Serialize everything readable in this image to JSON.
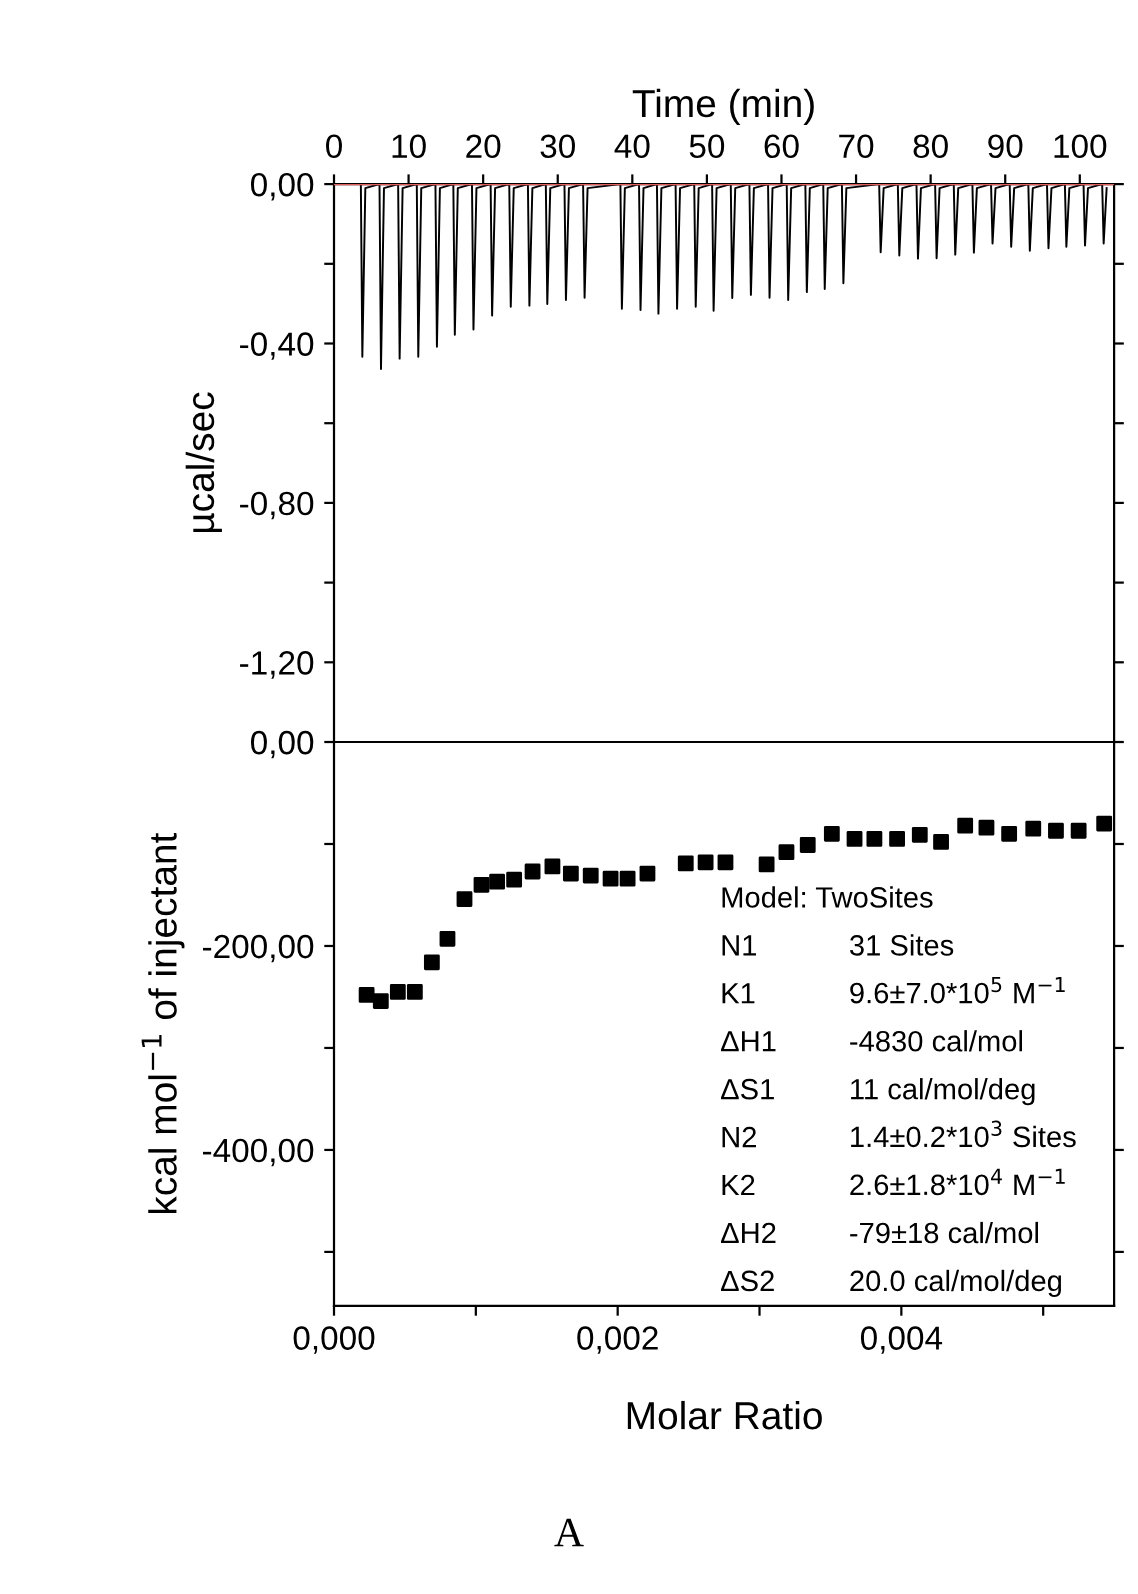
{
  "chart_data": [
    {
      "type": "line",
      "xlabel": "Time (min)",
      "ylabel": "µcal/sec",
      "xlim": [
        0,
        104.6
      ],
      "ylim": [
        -1.4,
        0
      ],
      "xticks": [
        0,
        10,
        20,
        30,
        40,
        50,
        60,
        70,
        80,
        90,
        100
      ],
      "yticks": [
        {
          "value": 0,
          "label": "0,00"
        },
        {
          "value": -0.2,
          "label": null
        },
        {
          "value": -0.4,
          "label": "-0,40"
        },
        {
          "value": -0.6,
          "label": null
        },
        {
          "value": -0.8,
          "label": "-0,80"
        },
        {
          "value": -1.0,
          "label": null
        },
        {
          "value": -1.2,
          "label": "-1,20"
        }
      ],
      "grid": false,
      "legend": false,
      "marker": "none",
      "line_style": "solid",
      "ref_lines": [
        {
          "axis": "y",
          "value": 0,
          "color": "#e06060"
        }
      ],
      "series": [
        {
          "color": "#000000",
          "x": [
            0.5,
            3.6,
            3.8,
            4.2,
            6.1,
            6.3,
            6.7,
            8.6,
            8.8,
            9.2,
            11.1,
            11.3,
            11.7,
            13.6,
            13.8,
            14.2,
            16.0,
            16.2,
            16.6,
            18.5,
            18.7,
            19.1,
            21.0,
            21.2,
            21.6,
            23.5,
            23.7,
            24.1,
            26.0,
            26.2,
            26.6,
            28.4,
            28.6,
            29.0,
            30.9,
            31.1,
            31.5,
            33.4,
            33.6,
            34.0,
            38.4,
            38.6,
            39.0,
            40.9,
            41.1,
            41.5,
            43.3,
            43.5,
            43.9,
            45.8,
            46.0,
            46.4,
            48.3,
            48.5,
            48.9,
            50.7,
            50.9,
            51.3,
            53.2,
            53.4,
            53.8,
            55.7,
            55.9,
            56.3,
            58.2,
            58.4,
            58.8,
            60.7,
            60.9,
            61.3,
            63.2,
            63.4,
            63.8,
            65.6,
            65.8,
            66.2,
            68.1,
            68.3,
            68.7,
            73.1,
            73.3,
            73.7,
            75.6,
            75.8,
            76.2,
            78.1,
            78.3,
            78.7,
            80.6,
            80.8,
            81.2,
            83.1,
            83.3,
            83.7,
            85.6,
            85.8,
            86.2,
            88.1,
            88.3,
            88.7,
            90.6,
            90.8,
            91.2,
            93.1,
            93.3,
            93.7,
            95.6,
            95.8,
            96.2,
            98.0,
            98.2,
            98.6,
            100.5,
            100.7,
            101.1,
            103.0,
            103.2,
            103.6
          ],
          "values": [
            0,
            0,
            -0.433,
            -0.01,
            0,
            -0.464,
            -0.01,
            0,
            -0.438,
            -0.01,
            0,
            -0.433,
            -0.01,
            0,
            -0.408,
            -0.01,
            0,
            -0.378,
            -0.01,
            0,
            -0.365,
            -0.01,
            0,
            -0.33,
            -0.01,
            0,
            -0.308,
            -0.01,
            0,
            -0.305,
            -0.01,
            0,
            -0.301,
            -0.01,
            0,
            -0.291,
            -0.01,
            0,
            -0.285,
            -0.01,
            0,
            -0.313,
            -0.01,
            0,
            -0.316,
            -0.01,
            0,
            -0.325,
            -0.01,
            0,
            -0.313,
            -0.01,
            0,
            -0.308,
            -0.01,
            0,
            -0.318,
            -0.01,
            0,
            -0.286,
            -0.01,
            0,
            -0.278,
            -0.01,
            0,
            -0.285,
            -0.01,
            0,
            -0.291,
            -0.01,
            0,
            -0.271,
            -0.01,
            0,
            -0.263,
            -0.01,
            0,
            -0.249,
            -0.01,
            0,
            -0.171,
            -0.01,
            0,
            -0.179,
            -0.01,
            0,
            -0.187,
            -0.01,
            0,
            -0.186,
            -0.01,
            0,
            -0.177,
            -0.01,
            0,
            -0.172,
            -0.01,
            0,
            -0.149,
            -0.01,
            0,
            -0.157,
            -0.01,
            0,
            -0.167,
            -0.01,
            0,
            -0.161,
            -0.01,
            0,
            -0.157,
            -0.01,
            0,
            -0.154,
            -0.01,
            0,
            -0.149,
            -0.01
          ]
        }
      ]
    },
    {
      "type": "scatter",
      "xlabel": "Molar Ratio",
      "ylabel": "kcal mol$^{−1}$ of injectant",
      "xlim": [
        0,
        0.0055
      ],
      "ylim": [
        -553,
        0
      ],
      "xticks": [
        {
          "value": 0,
          "label": "0,000"
        },
        {
          "value": 0.001,
          "label": null
        },
        {
          "value": 0.002,
          "label": "0,002"
        },
        {
          "value": 0.003,
          "label": null
        },
        {
          "value": 0.004,
          "label": "0,004"
        },
        {
          "value": 0.005,
          "label": null
        }
      ],
      "yticks": [
        {
          "value": 0,
          "label": "0,00"
        },
        {
          "value": -100,
          "label": null
        },
        {
          "value": -200,
          "label": "-200,00"
        },
        {
          "value": -300,
          "label": null
        },
        {
          "value": -400,
          "label": "-400,00"
        },
        {
          "value": -500,
          "label": null
        }
      ],
      "grid": false,
      "legend": false,
      "marker": "square",
      "annotations": [
        "Model: TwoSites",
        "N1",
        "31 Sites",
        "K1",
        "9.6±7.0*10$^{5}$ M$^{−1}$",
        "ΔH1",
        "-4830 cal/mol",
        "ΔS1",
        "11 cal/mol/deg",
        "N2",
        "1.4±0.2*10$^{3}$ Sites",
        "K2",
        "2.6±1.8*10$^{4}$ M$^{−1}$",
        "ΔH2",
        "-79±18 cal/mol",
        "ΔS2",
        "20.0 cal/mol/deg",
        "A"
      ],
      "series": [
        {
          "color": "#000000",
          "x": [
            0.00023,
            0.00033,
            0.00045,
            0.00057,
            0.00069,
            0.0008,
            0.00092,
            0.00104,
            0.00115,
            0.00127,
            0.0014,
            0.00154,
            0.00167,
            0.00181,
            0.00195,
            0.00207,
            0.00221,
            0.00248,
            0.00262,
            0.00276,
            0.00305,
            0.00319,
            0.00334,
            0.00351,
            0.00367,
            0.00381,
            0.00397,
            0.00413,
            0.00428,
            0.00445,
            0.0046,
            0.00476,
            0.00493,
            0.00509,
            0.00525,
            0.00543
          ],
          "values": [
            -248,
            -254,
            -245,
            -245,
            -216,
            -193,
            -154,
            -140,
            -137,
            -135,
            -127,
            -122,
            -129,
            -131,
            -134,
            -134,
            -129,
            -119,
            -118,
            -118,
            -120,
            -108,
            -101,
            -90,
            -95,
            -95,
            -95,
            -91,
            -98,
            -82,
            -84,
            -90,
            -85,
            -87,
            -87,
            -80
          ]
        }
      ]
    }
  ]
}
